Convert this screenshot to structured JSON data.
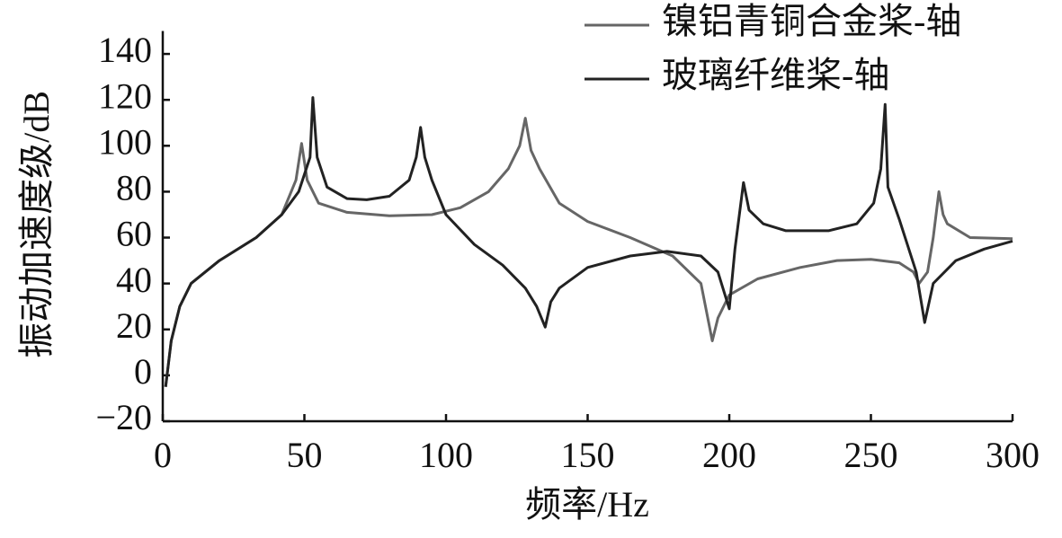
{
  "chart_data": {
    "type": "line",
    "x_label": "频率/Hz",
    "y_label": "振动加速度级/dB",
    "xlim": [
      0,
      300
    ],
    "xticks": [
      0,
      50,
      100,
      150,
      200,
      250,
      300
    ],
    "ylim": [
      -20,
      150
    ],
    "yticks": [
      {
        "value": -20,
        "label": "−20"
      },
      0,
      20,
      40,
      60,
      80,
      100,
      120,
      140
    ],
    "legend": "top-right",
    "series": [
      {
        "name": "镍铝青铜合金桨-轴",
        "color": "#666666",
        "x": [
          1,
          3,
          6,
          10,
          20,
          33,
          42,
          47,
          49,
          51,
          55,
          65,
          80,
          95,
          105,
          115,
          122,
          126,
          128,
          130,
          133,
          140,
          150,
          165,
          180,
          190,
          194,
          196,
          200,
          210,
          225,
          238,
          250,
          260,
          265,
          267,
          270,
          272,
          274,
          275.5,
          277,
          285,
          300
        ],
        "values": [
          -5,
          15,
          30,
          40,
          50,
          60,
          70,
          85,
          101,
          85,
          75,
          71,
          69.5,
          70,
          73,
          80,
          90,
          100,
          112,
          98,
          90,
          75,
          67,
          60,
          52,
          40,
          15,
          25,
          35,
          42,
          47,
          50,
          50.5,
          49,
          45,
          40,
          45,
          60,
          80,
          70,
          66,
          60,
          59.5
        ]
      },
      {
        "name": "玻璃纤维桨-轴",
        "color": "#222222",
        "x": [
          1,
          3,
          6,
          10,
          20,
          33,
          42,
          48,
          52,
          53,
          54.5,
          58,
          65,
          72,
          80,
          87,
          89.5,
          91,
          92.5,
          95,
          100,
          110,
          120,
          128,
          132,
          135,
          137,
          140,
          150,
          165,
          178,
          190,
          196,
          200,
          202,
          205,
          207,
          212,
          220,
          235,
          245,
          251,
          253.5,
          255,
          256,
          260,
          266,
          269,
          272,
          280,
          290,
          300
        ],
        "values": [
          -5,
          15,
          30,
          40,
          50,
          60,
          70,
          80,
          95,
          121,
          95,
          82,
          77,
          76.5,
          78,
          85,
          95,
          108,
          95,
          85,
          70,
          57,
          48,
          38,
          30,
          21,
          32,
          38,
          47,
          52,
          54,
          52,
          45,
          29,
          55,
          84,
          72,
          66,
          63,
          63,
          66,
          75,
          90,
          118,
          82,
          68,
          45,
          23,
          40,
          50,
          55,
          58.5
        ]
      }
    ]
  }
}
